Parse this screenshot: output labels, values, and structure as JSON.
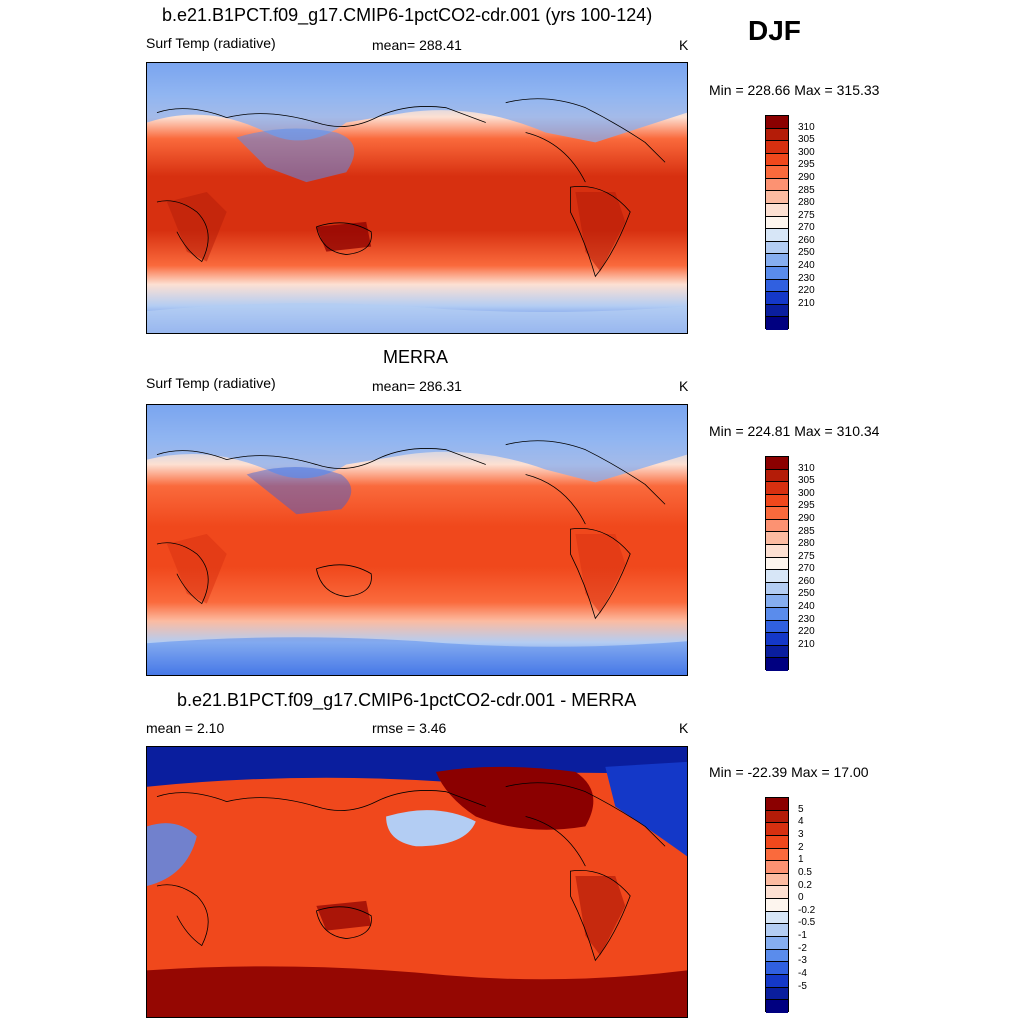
{
  "season": "DJF",
  "panels": [
    {
      "id": "model",
      "title": "b.e21.B1PCT.f09_g17.CMIP6-1pctCO2-cdr.001 (yrs 100-124)",
      "left_label": "Surf Temp (radiative)",
      "center_label": "mean= 288.41",
      "right_label": "K",
      "minmax": "Min = 228.66 Max = 315.33",
      "colorbar_labels": [
        "310",
        "305",
        "300",
        "295",
        "290",
        "285",
        "280",
        "275",
        "270",
        "260",
        "250",
        "240",
        "230",
        "220",
        "210"
      ],
      "colors": [
        "#8b0000",
        "#b41c08",
        "#d73010",
        "#f0481c",
        "#fa6a3c",
        "#fc9272",
        "#fcbba1",
        "#fde0d2",
        "#fdf5ee",
        "#d7e6f7",
        "#b3cdf3",
        "#86aef0",
        "#5a8cec",
        "#3060e0",
        "#1438c8",
        "#0a1e9e",
        "#000080"
      ]
    },
    {
      "id": "obs",
      "title": "MERRA",
      "left_label": "Surf Temp (radiative)",
      "center_label": "mean= 286.31",
      "right_label": "K",
      "minmax": "Min = 224.81 Max = 310.34",
      "colorbar_labels": [
        "310",
        "305",
        "300",
        "295",
        "290",
        "285",
        "280",
        "275",
        "270",
        "260",
        "250",
        "240",
        "230",
        "220",
        "210"
      ],
      "colors": [
        "#8b0000",
        "#b41c08",
        "#d73010",
        "#f0481c",
        "#fa6a3c",
        "#fc9272",
        "#fcbba1",
        "#fde0d2",
        "#fdf5ee",
        "#d7e6f7",
        "#b3cdf3",
        "#86aef0",
        "#5a8cec",
        "#3060e0",
        "#1438c8",
        "#0a1e9e",
        "#000080"
      ]
    },
    {
      "id": "diff",
      "title": "b.e21.B1PCT.f09_g17.CMIP6-1pctCO2-cdr.001 - MERRA",
      "left_label": "mean =   2.10",
      "center_label": "rmse =   3.46",
      "right_label": "K",
      "minmax": "Min = -22.39 Max =  17.00",
      "colorbar_labels": [
        "5",
        "4",
        "3",
        "2",
        "1",
        "0.5",
        "0.2",
        "0",
        "-0.2",
        "-0.5",
        "-1",
        "-2",
        "-3",
        "-4",
        "-5"
      ],
      "colors": [
        "#8b0000",
        "#b41c08",
        "#d73010",
        "#f0481c",
        "#fa6a3c",
        "#fc9272",
        "#fcbba1",
        "#fde0d2",
        "#fdf5ee",
        "#d7e6f7",
        "#b3cdf3",
        "#86aef0",
        "#5a8cec",
        "#3060e0",
        "#1438c8",
        "#0a1e9e",
        "#000080"
      ]
    }
  ]
}
